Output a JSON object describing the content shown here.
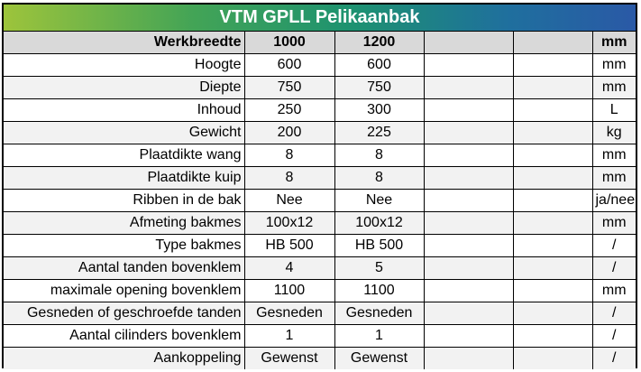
{
  "title": "VTM GPLL Pelikaanbak",
  "header": {
    "label": "Werkbreedte",
    "col1": "1000",
    "col2": "1200",
    "col3": "",
    "col4": "",
    "unit": "mm"
  },
  "rows": [
    {
      "label": "Hoogte",
      "v1": "600",
      "v2": "600",
      "unit": "mm"
    },
    {
      "label": "Diepte",
      "v1": "750",
      "v2": "750",
      "unit": "mm"
    },
    {
      "label": "Inhoud",
      "v1": "250",
      "v2": "300",
      "unit": "L"
    },
    {
      "label": "Gewicht",
      "v1": "200",
      "v2": "225",
      "unit": "kg"
    },
    {
      "label": "Plaatdikte wang",
      "v1": "8",
      "v2": "8",
      "unit": "mm"
    },
    {
      "label": "Plaatdikte kuip",
      "v1": "8",
      "v2": "8",
      "unit": "mm"
    },
    {
      "label": "Ribben in de bak",
      "v1": "Nee",
      "v2": "Nee",
      "unit": "ja/nee"
    },
    {
      "label": "Afmeting bakmes",
      "v1": "100x12",
      "v2": "100x12",
      "unit": "mm"
    },
    {
      "label": "Type bakmes",
      "v1": "HB 500",
      "v2": "HB 500",
      "unit": "/"
    },
    {
      "label": "Aantal tanden bovenklem",
      "v1": "4",
      "v2": "5",
      "unit": "/"
    },
    {
      "label": "maximale opening bovenklem",
      "v1": "1100",
      "v2": "1100",
      "unit": "mm"
    },
    {
      "label": "Gesneden of geschroefde tanden",
      "v1": "Gesneden",
      "v2": "Gesneden",
      "unit": "/"
    },
    {
      "label": "Aantal cilinders bovenklem",
      "v1": "1",
      "v2": "1",
      "unit": "/"
    },
    {
      "label": "Aankoppeling",
      "v1": "Gewenst",
      "v2": "Gewenst",
      "unit": "/"
    }
  ]
}
